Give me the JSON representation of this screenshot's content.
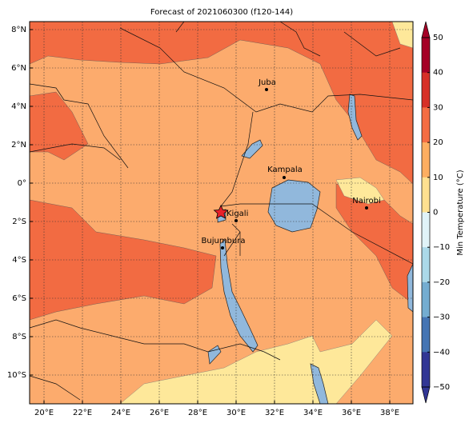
{
  "title": "Forecast of 2021060300 (f120-144)",
  "map": {
    "lat_labels": [
      "8°N",
      "6°N",
      "4°N",
      "2°N",
      "0°",
      "2°S",
      "4°S",
      "6°S",
      "8°S",
      "10°S"
    ],
    "lon_labels": [
      "20°E",
      "22°E",
      "24°E",
      "26°E",
      "28°E",
      "30°E",
      "32°E",
      "34°E",
      "36°E",
      "38°E"
    ],
    "cities": [
      "Juba",
      "Kampala",
      "Kigali",
      "Bujumbura",
      "Nairobi"
    ]
  },
  "colorbar": {
    "label": "Min Temperature (°C)",
    "ticks": [
      "50",
      "40",
      "30",
      "20",
      "10",
      "0",
      "−10",
      "−20",
      "−30",
      "−40",
      "−50"
    ],
    "colors": [
      "#a50026",
      "#d73027",
      "#f46d43",
      "#fdae61",
      "#fee090",
      "#e0f3f8",
      "#abd9e9",
      "#74add1",
      "#4575b4",
      "#313695"
    ]
  }
}
